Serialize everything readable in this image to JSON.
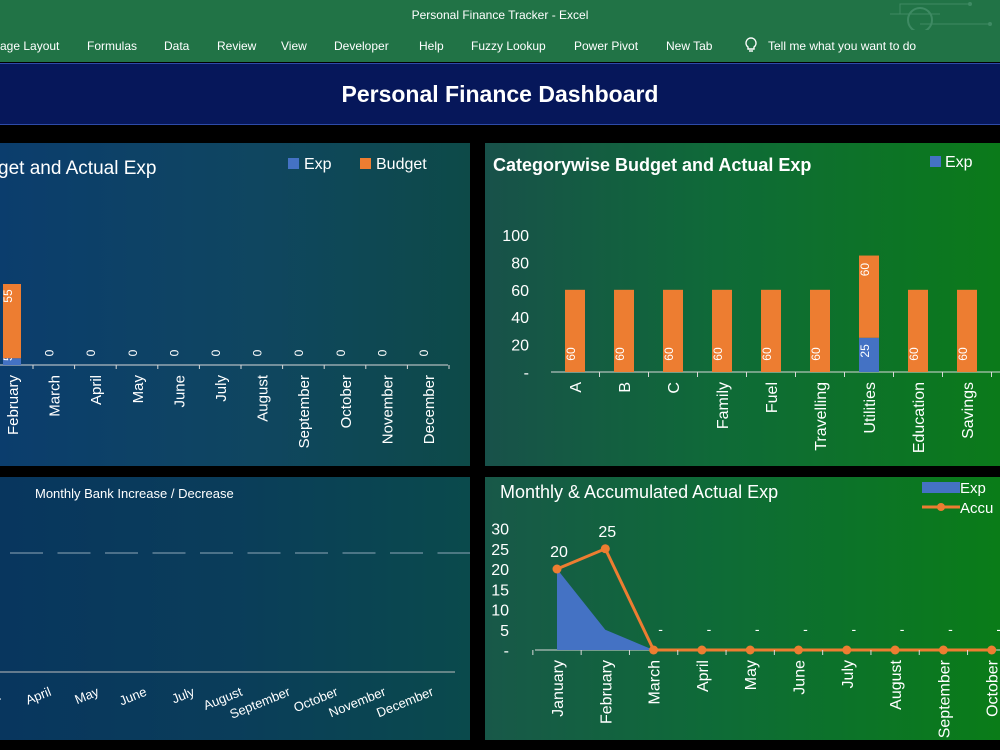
{
  "window": {
    "title": "Personal Finance Tracker  -  Excel"
  },
  "menu": {
    "items": [
      "age Layout",
      "Formulas",
      "Data",
      "Review",
      "View",
      "Developer",
      "Help",
      "Fuzzy Lookup",
      "Power Pivot",
      "New Tab"
    ],
    "tell_me": "Tell me what you want to do"
  },
  "dashboard": {
    "title": "Personal Finance Dashboard"
  },
  "colors": {
    "exp": "#4472c4",
    "budget": "#ed7d31",
    "text": "#ffffff",
    "excel_green": "#217346",
    "banner": "#06175a"
  },
  "chart_data": [
    {
      "type": "bar",
      "name": "monthly-budget-actual",
      "title": "get and Actual Exp",
      "legend": [
        "Exp",
        "Budget"
      ],
      "categories": [
        "February",
        "March",
        "April",
        "May",
        "June",
        "July",
        "August",
        "September",
        "October",
        "November",
        "December"
      ],
      "series": [
        {
          "name": "Exp",
          "values": [
            5,
            0,
            0,
            0,
            0,
            0,
            0,
            0,
            0,
            0,
            0
          ]
        },
        {
          "name": "Budget",
          "values": [
            55,
            0,
            0,
            0,
            0,
            0,
            0,
            0,
            0,
            0,
            0
          ]
        }
      ],
      "exp_labels": [
        "5",
        "",
        "",
        "",
        "",
        "",
        "",
        "",
        "",
        "",
        ""
      ],
      "budget_labels": [
        "55",
        "0",
        "0",
        "0",
        "0",
        "0",
        "0",
        "0",
        "0",
        "0",
        "0"
      ],
      "stacked": true
    },
    {
      "type": "bar",
      "name": "category-budget-actual",
      "title": "Categorywise Budget and Actual Exp",
      "legend": [
        "Exp"
      ],
      "categories": [
        "A",
        "B",
        "C",
        "Family",
        "Fuel",
        "Travelling",
        "Utilities",
        "Education",
        "Savings"
      ],
      "series": [
        {
          "name": "Exp",
          "values": [
            0,
            0,
            0,
            0,
            0,
            0,
            25,
            0,
            0
          ]
        },
        {
          "name": "Budget",
          "values": [
            60,
            60,
            60,
            60,
            60,
            60,
            60,
            60,
            60
          ]
        }
      ],
      "exp_labels": [
        "",
        "",
        "",
        "",
        "",
        "",
        "25",
        "",
        ""
      ],
      "budget_labels": [
        "60",
        "60",
        "60",
        "60",
        "60",
        "60",
        "60",
        "60",
        "60"
      ],
      "ylim": [
        0,
        100
      ],
      "yticks": [
        "-",
        "20",
        "40",
        "60",
        "80",
        "100"
      ],
      "stacked": true
    },
    {
      "type": "bar",
      "name": "monthly-bank-change",
      "title": "Monthly Bank Increase / Decrease",
      "categories": [
        "April",
        "May",
        "June",
        "July",
        "August",
        "September",
        "October",
        "November",
        "December"
      ],
      "values": [
        0,
        0,
        0,
        0,
        0,
        0,
        0,
        0,
        0
      ]
    },
    {
      "type": "line",
      "name": "monthly-accumulated-exp",
      "title": "Monthly & Accumulated Actual Exp",
      "legend": [
        "Exp",
        "Accu"
      ],
      "categories": [
        "January",
        "February",
        "March",
        "April",
        "May",
        "June",
        "July",
        "August",
        "September",
        "October"
      ],
      "series": [
        {
          "name": "Exp",
          "type": "area",
          "values": [
            20,
            5,
            0,
            0,
            0,
            0,
            0,
            0,
            0,
            0
          ]
        },
        {
          "name": "Accumulated",
          "type": "line",
          "values": [
            20,
            25,
            0,
            0,
            0,
            0,
            0,
            0,
            0,
            0
          ]
        }
      ],
      "point_labels": [
        "20",
        "25",
        "-",
        "-",
        "-",
        "-",
        "-",
        "-",
        "-",
        "-"
      ],
      "ylim": [
        0,
        30
      ],
      "yticks": [
        "-",
        "5",
        "10",
        "15",
        "20",
        "25",
        "30"
      ]
    }
  ]
}
